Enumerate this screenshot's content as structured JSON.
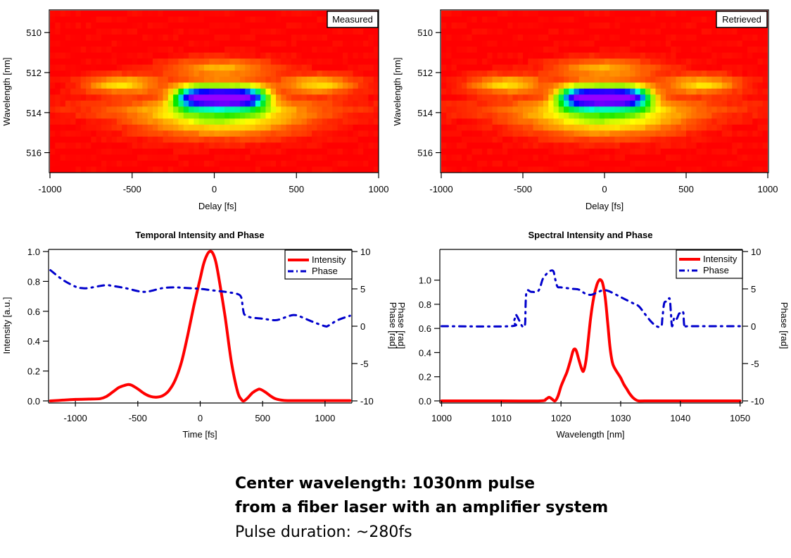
{
  "chart_data": [
    {
      "type": "heatmap",
      "id": "measured",
      "legend_label": "Measured",
      "legend_position": "top-right",
      "xlabel": "Delay [fs]",
      "ylabel": "Wavelength [nm]",
      "xlim": [
        -1000,
        1000
      ],
      "ylim": [
        517.0,
        508.9
      ],
      "xticks": [
        -1000,
        -500,
        0,
        500,
        1000
      ],
      "yticks": [
        510,
        512,
        514,
        516
      ],
      "colormap": "rainbow (red=low, violet=high)",
      "features": [
        {
          "delay": 40,
          "wavelength": 513.2,
          "intensity": 1.0,
          "desc": "main peak"
        },
        {
          "delay": -560,
          "wavelength": 512.6,
          "intensity": 0.25,
          "desc": "left satellite"
        },
        {
          "delay": 640,
          "wavelength": 512.6,
          "intensity": 0.25,
          "desc": "right satellite"
        }
      ]
    },
    {
      "type": "heatmap",
      "id": "retrieved",
      "legend_label": "Retrieved",
      "legend_position": "top-right",
      "xlabel": "Delay [fs]",
      "ylabel": "Wavelength [nm]",
      "xlim": [
        -1000,
        1000
      ],
      "ylim": [
        517.0,
        508.9
      ],
      "xticks": [
        -1000,
        -500,
        0,
        500,
        1000
      ],
      "yticks": [
        510,
        512,
        514,
        516
      ],
      "colormap": "rainbow (red=low, violet=high)",
      "features": [
        {
          "delay": 0,
          "wavelength": 513.2,
          "intensity": 1.0,
          "desc": "main peak"
        },
        {
          "delay": -600,
          "wavelength": 512.6,
          "intensity": 0.25,
          "desc": "left satellite"
        },
        {
          "delay": 600,
          "wavelength": 512.6,
          "intensity": 0.25,
          "desc": "right satellite"
        }
      ]
    },
    {
      "type": "line",
      "id": "temporal",
      "title": "Temporal Intensity and Phase",
      "xlabel": "Time [fs]",
      "ylabel": "Intensity [a.u.]",
      "y2label": "Phase [rad]",
      "xlim": [
        -1215,
        1215
      ],
      "ylim": [
        0,
        1.0
      ],
      "y2lim": [
        -10,
        10
      ],
      "xticks": [
        -1000,
        -500,
        0,
        500,
        1000
      ],
      "yticks": [
        0.0,
        0.2,
        0.4,
        0.6,
        0.8,
        1.0
      ],
      "y2ticks": [
        -10,
        -5,
        0,
        5,
        10
      ],
      "legend_position": "top-right",
      "series": [
        {
          "name": "Intensity",
          "axis": "left",
          "color": "#ff0000",
          "style": "solid",
          "x": [
            -1200,
            -1100,
            -1000,
            -900,
            -800,
            -750,
            -700,
            -650,
            -600,
            -575,
            -550,
            -500,
            -450,
            -400,
            -350,
            -300,
            -250,
            -200,
            -150,
            -100,
            -50,
            0,
            25,
            50,
            75,
            100,
            125,
            150,
            200,
            250,
            300,
            330,
            350,
            380,
            420,
            460,
            480,
            520,
            560,
            600,
            650,
            700,
            800,
            900,
            1000,
            1100,
            1200
          ],
          "values": [
            0.0,
            0.005,
            0.01,
            0.012,
            0.015,
            0.03,
            0.06,
            0.09,
            0.105,
            0.11,
            0.105,
            0.08,
            0.05,
            0.03,
            0.025,
            0.035,
            0.07,
            0.14,
            0.26,
            0.44,
            0.64,
            0.82,
            0.91,
            0.97,
            1.0,
            0.99,
            0.93,
            0.82,
            0.56,
            0.26,
            0.06,
            0.01,
            0.0,
            0.02,
            0.055,
            0.075,
            0.078,
            0.06,
            0.035,
            0.015,
            0.005,
            0.002,
            0.002,
            0.002,
            0.002,
            0.002,
            0.002
          ]
        },
        {
          "name": "Phase",
          "axis": "right",
          "color": "#0000cc",
          "style": "dash-dot",
          "x": [
            -1200,
            -1100,
            -1000,
            -950,
            -900,
            -800,
            -750,
            -700,
            -600,
            -500,
            -450,
            -400,
            -300,
            -200,
            -100,
            0,
            100,
            200,
            300,
            330,
            340,
            350,
            360,
            400,
            500,
            600,
            650,
            700,
            750,
            800,
            900,
            1000,
            1030,
            1100,
            1200
          ],
          "values": [
            7.5,
            6.2,
            5.3,
            5.1,
            5.1,
            5.4,
            5.5,
            5.4,
            5.1,
            4.7,
            4.6,
            4.7,
            5.1,
            5.2,
            5.1,
            5.0,
            4.8,
            4.6,
            4.3,
            3.8,
            2.6,
            1.7,
            1.5,
            1.2,
            1.0,
            0.8,
            1.0,
            1.3,
            1.5,
            1.3,
            0.6,
            0.0,
            0.1,
            0.8,
            1.4
          ]
        }
      ]
    },
    {
      "type": "line",
      "id": "spectral",
      "title": "Spectral Intensity and Phase",
      "xlabel": "Wavelength [nm]",
      "ylabel": "Phase [rad]",
      "y2label": "Phase [rad]",
      "xlim": [
        999.7,
        1050.4
      ],
      "ylim": [
        0,
        1.12
      ],
      "y2lim": [
        -10,
        10
      ],
      "xticks": [
        1000,
        1010,
        1020,
        1030,
        1040,
        1050
      ],
      "yticks": [
        0.0,
        0.2,
        0.4,
        0.6,
        0.8,
        1.0
      ],
      "y2ticks": [
        -10,
        -5,
        0,
        5,
        10
      ],
      "legend_position": "top-right",
      "series": [
        {
          "name": "Intensity",
          "axis": "left",
          "color": "#ff0000",
          "style": "solid",
          "x": [
            1000,
            1010,
            1016.5,
            1017.5,
            1018.0,
            1018.5,
            1019.0,
            1019.5,
            1020.0,
            1020.5,
            1021.0,
            1021.5,
            1022.0,
            1022.3,
            1022.6,
            1023.0,
            1023.5,
            1023.8,
            1024.2,
            1024.6,
            1025.0,
            1025.5,
            1026.0,
            1026.4,
            1026.7,
            1027.0,
            1027.4,
            1027.8,
            1028.2,
            1028.6,
            1029.0,
            1029.5,
            1030.0,
            1030.5,
            1031.0,
            1031.5,
            1032.0,
            1032.5,
            1033.0,
            1034.0,
            1040,
            1050
          ],
          "values": [
            0.0,
            0.0,
            0.0,
            0.015,
            0.03,
            0.015,
            0.0,
            0.04,
            0.12,
            0.18,
            0.24,
            0.32,
            0.41,
            0.43,
            0.41,
            0.34,
            0.26,
            0.25,
            0.34,
            0.52,
            0.7,
            0.86,
            0.96,
            1.0,
            1.0,
            0.97,
            0.86,
            0.66,
            0.45,
            0.32,
            0.27,
            0.23,
            0.19,
            0.14,
            0.1,
            0.06,
            0.03,
            0.01,
            0.0,
            0.0,
            0.0,
            0.0
          ]
        },
        {
          "name": "Phase",
          "axis": "right",
          "color": "#0000cc",
          "style": "dash-dot",
          "x": [
            1000,
            1011.5,
            1012.0,
            1012.3,
            1012.5,
            1013.5,
            1013.8,
            1014.0,
            1014.2,
            1015.0,
            1016.0,
            1016.5,
            1017.0,
            1018.0,
            1018.7,
            1019.0,
            1019.4,
            1020.0,
            1022.0,
            1023.0,
            1024.0,
            1025.0,
            1026.0,
            1027.0,
            1028.0,
            1030.0,
            1032.0,
            1033.0,
            1034.0,
            1035.0,
            1036.0,
            1036.8,
            1037.0,
            1037.3,
            1037.8,
            1038.2,
            1038.4,
            1038.6,
            1039.0,
            1039.4,
            1039.8,
            1040.2,
            1040.5,
            1040.7,
            1041.5,
            1050
          ],
          "values": [
            0.0,
            0.0,
            0.5,
            1.1,
            1.5,
            0.0,
            0.0,
            0.5,
            4.5,
            4.6,
            4.6,
            5.2,
            6.4,
            7.3,
            7.4,
            6.4,
            5.3,
            5.2,
            5.0,
            4.9,
            4.4,
            4.2,
            4.5,
            4.8,
            4.7,
            3.9,
            3.1,
            2.7,
            1.7,
            0.7,
            0.0,
            0.0,
            1.2,
            3.1,
            3.3,
            3.7,
            2.0,
            0.0,
            1.2,
            1.0,
            1.7,
            1.6,
            1.8,
            0.0,
            0.0,
            0.0
          ]
        }
      ],
      "stray_label": "Phase [rad]"
    }
  ],
  "caption": {
    "line1": "Center wavelength: 1030nm pulse",
    "line2": "from a fiber laser with an amplifier system",
    "line3": "Pulse duration: ~280fs"
  }
}
